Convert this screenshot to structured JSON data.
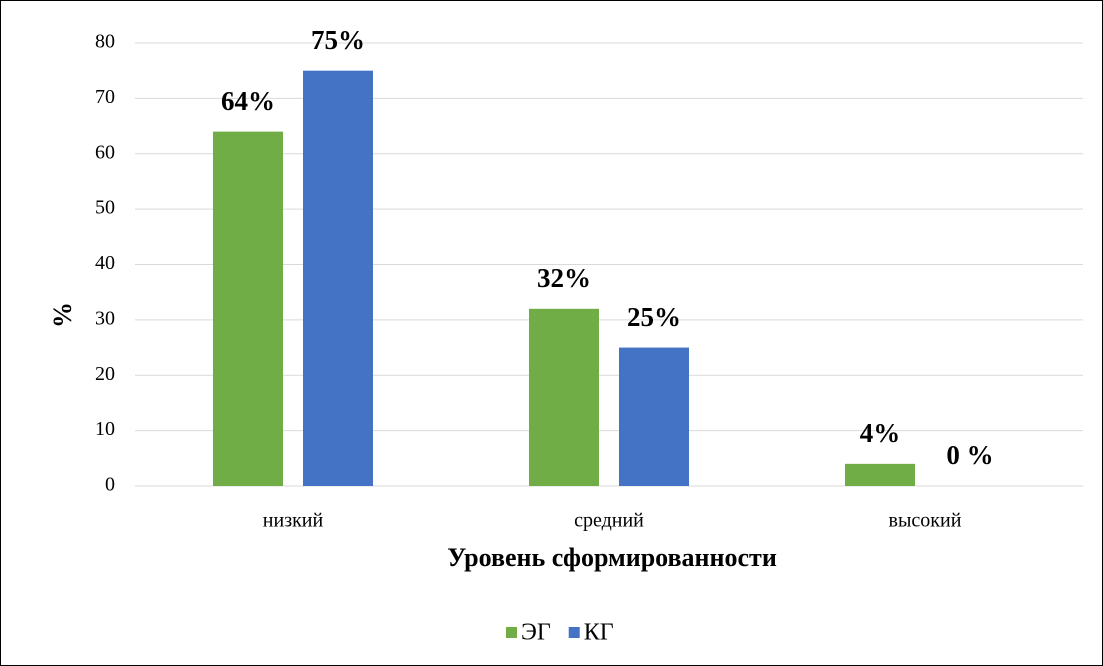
{
  "chart_data": {
    "type": "bar",
    "categories": [
      "низкий",
      "средний",
      "высокий"
    ],
    "series": [
      {
        "name": "ЭГ",
        "color": "#70ad47",
        "values": [
          64,
          32,
          4
        ],
        "value_labels": [
          "64%",
          "32%",
          "4%"
        ]
      },
      {
        "name": "КГ",
        "color": "#4472c4",
        "values": [
          75,
          25,
          0
        ],
        "value_labels": [
          "75%",
          "25%",
          "0 %"
        ]
      }
    ],
    "ylim": [
      0,
      80
    ],
    "yticks": [
      0,
      10,
      20,
      30,
      40,
      50,
      60,
      70,
      80
    ],
    "grid": true,
    "ylabel": "%",
    "xlabel": "Уровень сформированности",
    "legend": "bottom"
  }
}
